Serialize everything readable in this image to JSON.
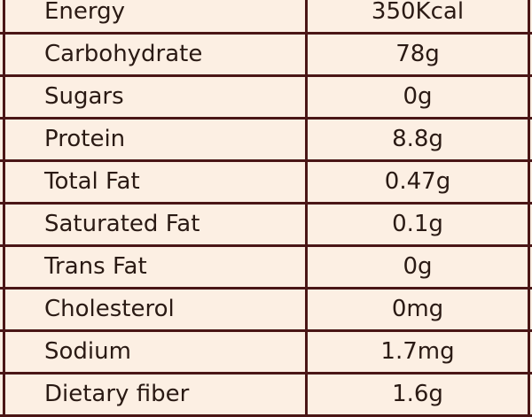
{
  "colors": {
    "border": "#4a1616",
    "background": "#fcefe3",
    "text": "#2a1a14"
  },
  "rows": [
    {
      "name": "Energy",
      "value": "350Kcal"
    },
    {
      "name": "Carbohydrate",
      "value": "78g"
    },
    {
      "name": "Sugars",
      "value": "0g"
    },
    {
      "name": "Protein",
      "value": "8.8g"
    },
    {
      "name": "Total Fat",
      "value": "0.47g"
    },
    {
      "name": "Saturated Fat",
      "value": "0.1g"
    },
    {
      "name": "Trans Fat",
      "value": "0g"
    },
    {
      "name": "Cholesterol",
      "value": "0mg"
    },
    {
      "name": "Sodium",
      "value": "1.7mg"
    },
    {
      "name": "Dietary fiber",
      "value": "1.6g"
    }
  ]
}
